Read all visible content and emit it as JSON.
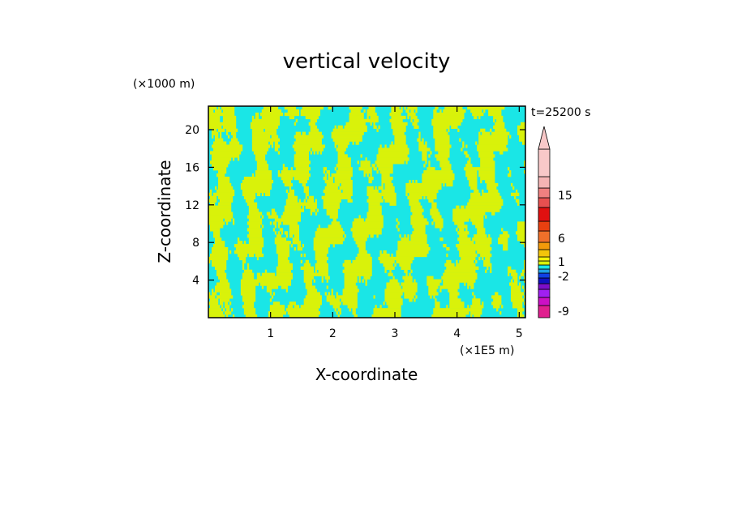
{
  "chart_data": {
    "type": "heatmap",
    "title": "vertical velocity",
    "xlabel": "X-coordinate",
    "ylabel": "Z-coordinate",
    "x_unit": "(×1E5 m)",
    "y_unit": "(×1000 m)",
    "time_label": "t=25200 s",
    "xlim": [
      0,
      5.1
    ],
    "ylim": [
      0,
      22.5
    ],
    "x_ticks": [
      "1",
      "2",
      "3",
      "4",
      "5"
    ],
    "y_ticks": [
      "4",
      "8",
      "12",
      "16",
      "20"
    ],
    "x_tick_values": [
      1,
      2,
      3,
      4,
      5
    ],
    "y_tick_values": [
      4,
      8,
      12,
      16,
      20
    ],
    "field_colors": {
      "positive_small": "#d9f20a",
      "negative_small": "#1ae6e6"
    },
    "colorbar": {
      "tick_labels": [
        "15",
        "6",
        "1",
        "-2",
        "-9"
      ],
      "colors": [
        "#e01f8f",
        "#cc10c4",
        "#a020f0",
        "#7b0ec9",
        "#1010c0",
        "#1040e6",
        "#20a0e6",
        "#1ae6e6",
        "#d9f20a",
        "#f2f20a",
        "#f2c40a",
        "#f29a0a",
        "#f0702a",
        "#e84010",
        "#e01010",
        "#e85050",
        "#f08080",
        "#f5b4b4",
        "#f8c8c8"
      ]
    }
  }
}
